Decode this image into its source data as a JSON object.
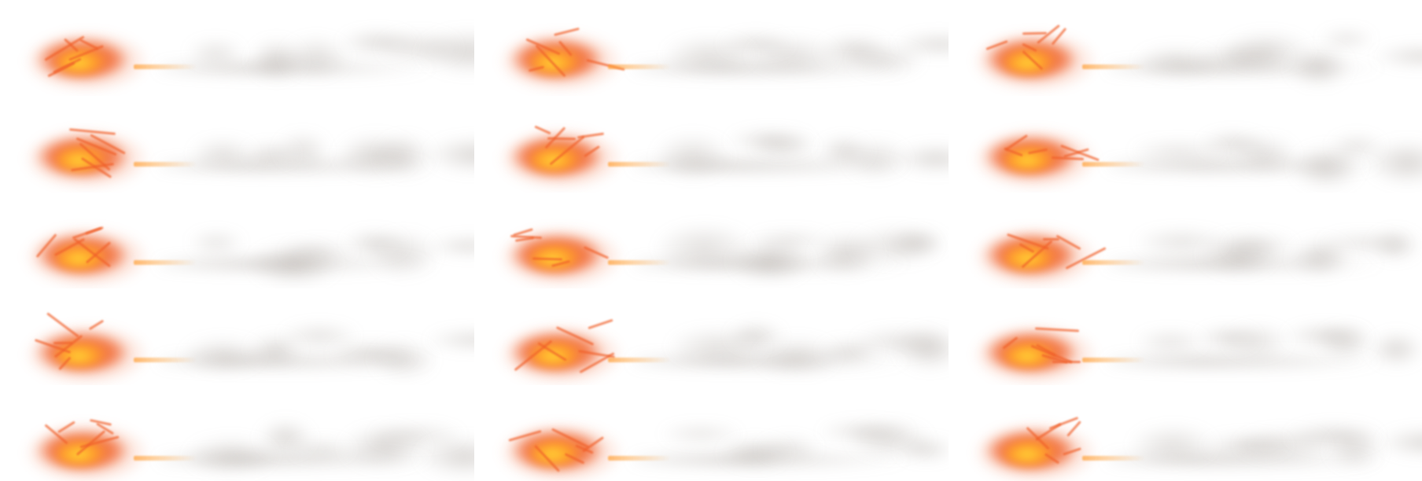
{
  "colors": {
    "background": "#ffffff",
    "flame_core": "#ffe23a",
    "flame_mid": "#ff9a2a",
    "flame_outer": "#f0602a",
    "smoke": "#8a8078"
  }
}
